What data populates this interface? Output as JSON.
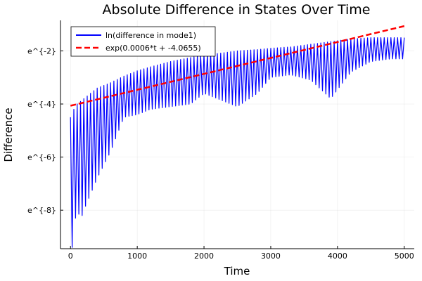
{
  "chart_data": {
    "type": "line",
    "title": "Absolute Difference in States Over Time",
    "xlabel": "Time",
    "ylabel": "Difference",
    "xlim": [
      -150,
      5150
    ],
    "ylim": [
      -9.45,
      -0.85
    ],
    "y_scale": "natural log (e-based) tick labels",
    "x_ticks": [
      {
        "value": 0,
        "label": "0"
      },
      {
        "value": 1000,
        "label": "1000"
      },
      {
        "value": 2000,
        "label": "2000"
      },
      {
        "value": 3000,
        "label": "3000"
      },
      {
        "value": 4000,
        "label": "4000"
      },
      {
        "value": 5000,
        "label": "5000"
      }
    ],
    "y_ticks": [
      {
        "value": -8,
        "label": "e^{-8}"
      },
      {
        "value": -6,
        "label": "e^{-6}"
      },
      {
        "value": -4,
        "label": "e^{-4}"
      },
      {
        "value": -2,
        "label": "e^{-2}"
      }
    ],
    "grid": true,
    "legend_position": "top-left",
    "series": [
      {
        "name": "ln(difference in mode1)",
        "color": "#0000ff",
        "style": "solid",
        "envelope": {
          "t": [
            0,
            50,
            100,
            200,
            400,
            600,
            800,
            1000,
            1200,
            1500,
            1800,
            2000,
            2200,
            2500,
            2800,
            3000,
            3300,
            3600,
            3900,
            4200,
            4500,
            4800,
            5000
          ],
          "upper": [
            -4.5,
            -4.2,
            -4.0,
            -3.8,
            -3.4,
            -3.2,
            -2.95,
            -2.75,
            -2.6,
            -2.4,
            -2.25,
            -2.15,
            -2.1,
            -2.0,
            -1.95,
            -1.9,
            -1.85,
            -1.75,
            -1.65,
            -1.55,
            -1.5,
            -1.5,
            -1.5
          ],
          "lower": [
            -9.4,
            -8.4,
            -8.2,
            -8.0,
            -6.8,
            -5.8,
            -4.5,
            -4.4,
            -4.2,
            -4.1,
            -4.0,
            -3.6,
            -3.8,
            -4.1,
            -3.6,
            -3.0,
            -2.9,
            -3.1,
            -3.8,
            -2.8,
            -2.4,
            -2.3,
            -2.3
          ]
        },
        "dips": [
          {
            "t": 20,
            "y": -9.4
          },
          {
            "t": 100,
            "y": -8.5
          },
          {
            "t": 190,
            "y": -8.2
          },
          {
            "t": 1900,
            "y": -4.2
          },
          {
            "t": 2500,
            "y": -4.3
          },
          {
            "t": 3850,
            "y": -4.2
          }
        ],
        "oscillation_period": 50
      },
      {
        "name": "exp(0.0006*t + -4.0655)",
        "color": "#ff0000",
        "style": "dashed",
        "slope": 0.0006,
        "intercept": -4.0655,
        "x_range": [
          0,
          5000
        ]
      }
    ]
  }
}
